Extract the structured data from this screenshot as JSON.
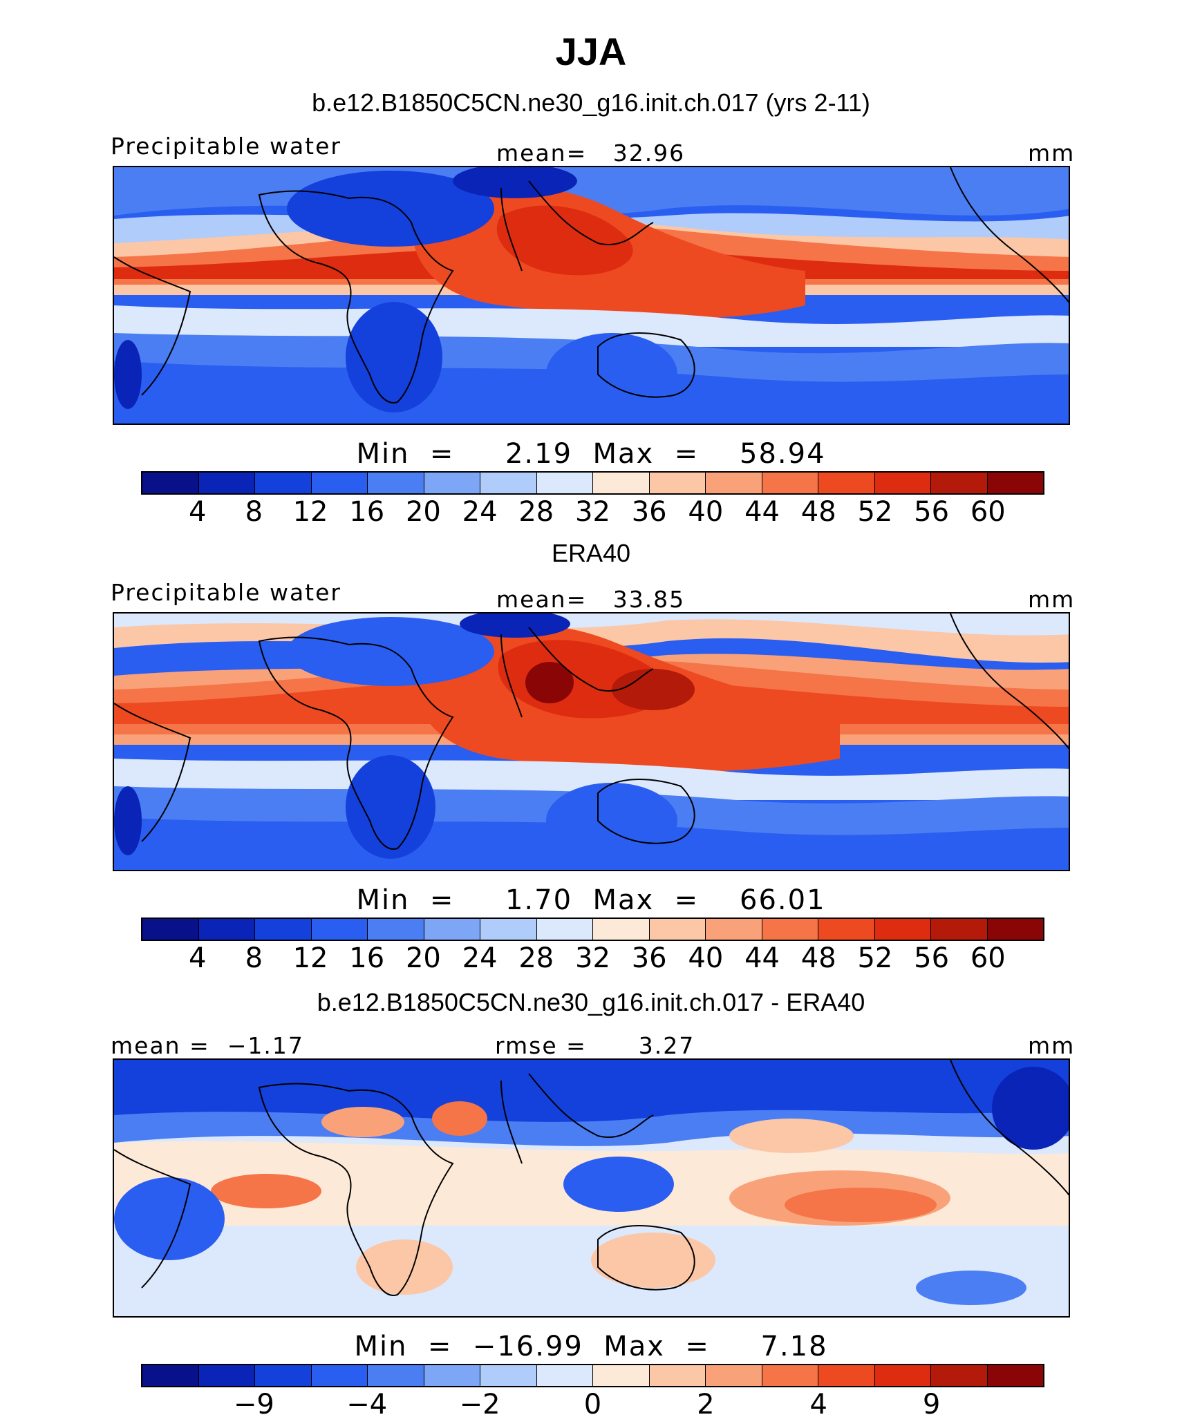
{
  "title": "JJA",
  "colors": [
    "#08108a",
    "#0a24b8",
    "#1440dc",
    "#2a5ef0",
    "#4a7ef2",
    "#7ea6f6",
    "#b0ccfa",
    "#dce8fc",
    "#fde9d8",
    "#fbc7a6",
    "#f9a27a",
    "#f57448",
    "#ee4a22",
    "#de2c10",
    "#b31a0a",
    "#8a0606"
  ],
  "panels": [
    {
      "subtitle": "b.e12.B1850C5CN.ne30_g16.init.ch.017 (yrs 2-11)",
      "left_label": "Precipitable water",
      "center_label": "mean=   32.96",
      "units": "mm",
      "min_label": "Min",
      "min_value": "2.19",
      "max_label": "Max",
      "max_value": "58.94",
      "ticks": [
        "4",
        "8",
        "12",
        "16",
        "20",
        "24",
        "28",
        "32",
        "36",
        "40",
        "44",
        "48",
        "52",
        "56",
        "60"
      ]
    },
    {
      "subtitle": "ERA40",
      "left_label": "Precipitable water",
      "center_label": "mean=   33.85",
      "units": "mm",
      "min_label": "Min",
      "min_value": "1.70",
      "max_label": "Max",
      "max_value": "66.01",
      "ticks": [
        "4",
        "8",
        "12",
        "16",
        "20",
        "24",
        "28",
        "32",
        "36",
        "40",
        "44",
        "48",
        "52",
        "56",
        "60"
      ]
    },
    {
      "subtitle": "b.e12.B1850C5CN.ne30_g16.init.ch.017 - ERA40",
      "left_label": "mean =  −1.17",
      "center_label": "rmse =      3.27",
      "units": "mm",
      "min_label": "Min",
      "min_value": "−16.99",
      "max_label": "Max",
      "max_value": "7.18",
      "ticks": [
        "−9",
        "−4",
        "−2",
        "0",
        "2",
        "4",
        "9"
      ]
    }
  ]
}
